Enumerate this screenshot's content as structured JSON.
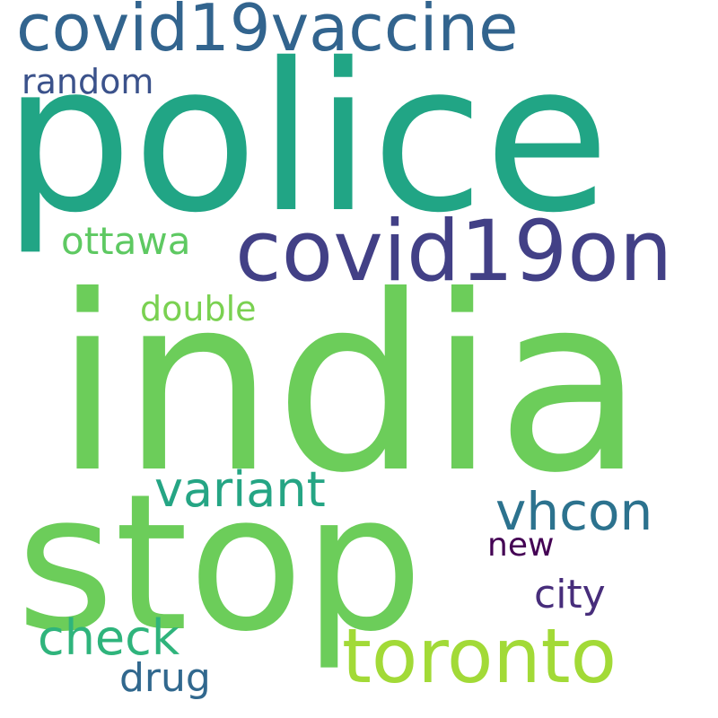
{
  "words": [
    {
      "text": "police",
      "color": "#21a585"
    },
    {
      "text": "india",
      "color": "#6ccd5a"
    },
    {
      "text": "stop",
      "color": "#6ccd5a"
    },
    {
      "text": "covid19on",
      "color": "#424086"
    },
    {
      "text": "covid19vaccine",
      "color": "#32648e"
    },
    {
      "text": "toronto",
      "color": "#a2da37"
    },
    {
      "text": "variant",
      "color": "#25a584"
    },
    {
      "text": "vhcon",
      "color": "#2c728e"
    },
    {
      "text": "check",
      "color": "#2fb47c"
    },
    {
      "text": "ottawa",
      "color": "#5ec962"
    },
    {
      "text": "double",
      "color": "#7ad151"
    },
    {
      "text": "random",
      "color": "#3b528b"
    },
    {
      "text": "city",
      "color": "#472d7b"
    },
    {
      "text": "new",
      "color": "#440154"
    },
    {
      "text": "drug",
      "color": "#31688e"
    }
  ]
}
